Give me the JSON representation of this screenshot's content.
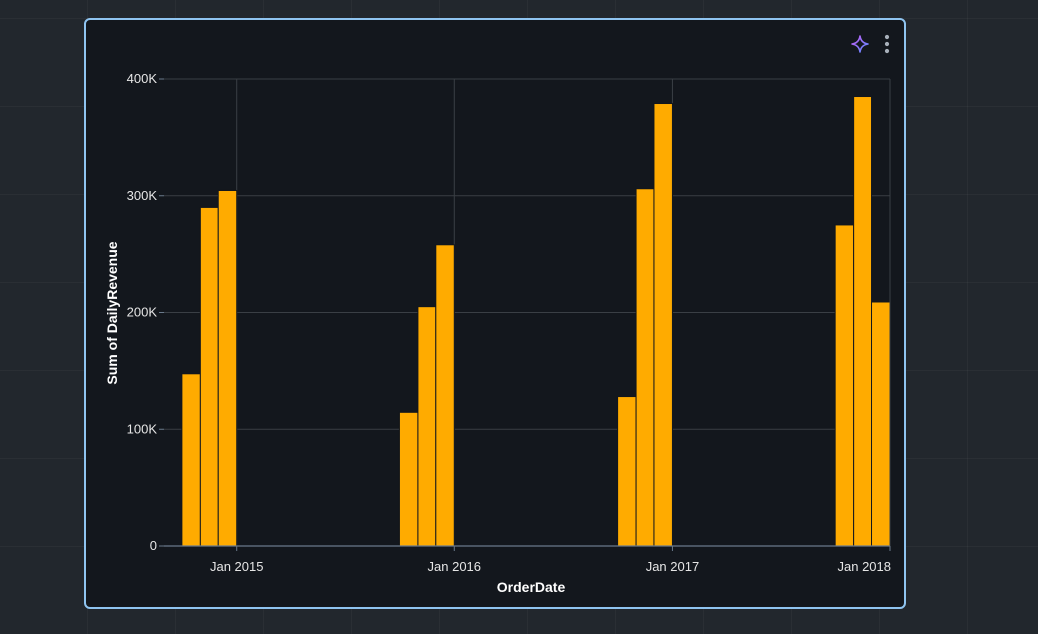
{
  "card": {
    "actions": [
      {
        "icon": "sparkle-icon"
      },
      {
        "icon": "more-vertical-icon"
      }
    ]
  },
  "colors": {
    "bar": "#ffab00",
    "bar_stroke": "#13171d",
    "grid": "#3a3f45",
    "axis": "#6a7a8c",
    "card_border": "#8fc4f0",
    "sparkle_start": "#c45cf5",
    "sparkle_end": "#5b8cff"
  },
  "chart_data": {
    "type": "bar",
    "xlabel": "OrderDate",
    "ylabel": "Sum of DailyRevenue",
    "ylim": [
      0,
      400000
    ],
    "y_ticks": [
      0,
      100000,
      200000,
      300000,
      400000
    ],
    "y_tick_labels": [
      "0",
      "100K",
      "200K",
      "300K",
      "400K"
    ],
    "x_ticks": [
      "2015-01-01",
      "2016-01-01",
      "2017-01-01",
      "2018-01-01"
    ],
    "x_tick_labels": [
      "Jan 2015",
      "Jan 2016",
      "Jan 2017",
      "Jan 2018"
    ],
    "xlim": [
      "2014-09-01",
      "2018-01-01"
    ],
    "grid": true,
    "bars": [
      {
        "x": "2014-10-01",
        "value": 147500
      },
      {
        "x": "2014-11-01",
        "value": 290000
      },
      {
        "x": "2014-12-01",
        "value": 304500
      },
      {
        "x": "2015-10-01",
        "value": 114500
      },
      {
        "x": "2015-11-01",
        "value": 205000
      },
      {
        "x": "2015-12-01",
        "value": 258000
      },
      {
        "x": "2016-10-01",
        "value": 128000
      },
      {
        "x": "2016-11-01",
        "value": 306000
      },
      {
        "x": "2016-12-01",
        "value": 379000
      },
      {
        "x": "2017-10-01",
        "value": 275000
      },
      {
        "x": "2017-11-01",
        "value": 385000
      },
      {
        "x": "2017-12-01",
        "value": 209000
      }
    ]
  }
}
